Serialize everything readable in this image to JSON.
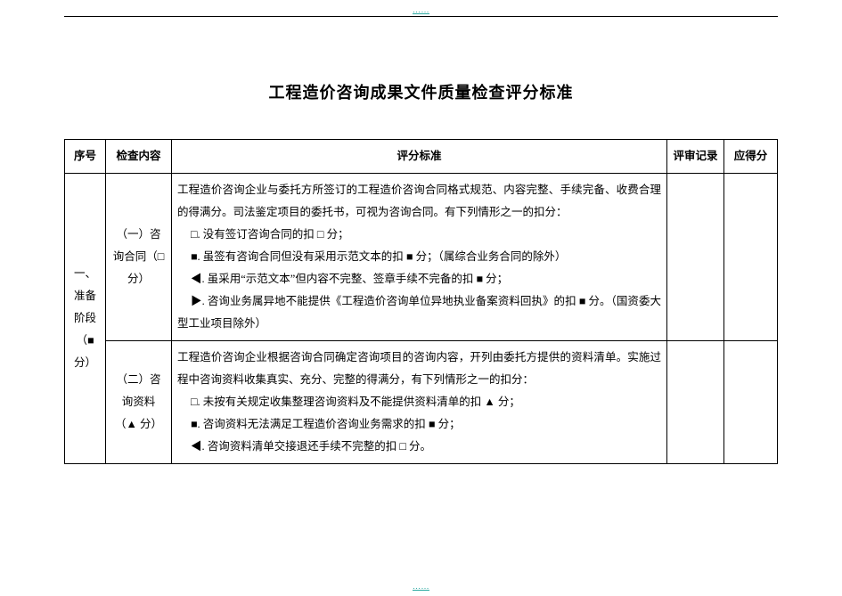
{
  "meta": {
    "top_link_text": "……",
    "bottom_link_text": "……"
  },
  "title": "工程造价咨询成果文件质量检查评分标准",
  "headers": {
    "seq": "序号",
    "item": "检查内容",
    "criteria": "评分标准",
    "record": "评审记录",
    "score": "应得分"
  },
  "section": {
    "seq": "一、准备阶段（■ 分）",
    "rows": [
      {
        "item": "（一）咨询合同（□ 分）",
        "criteria_lines": [
          "工程造价咨询企业与委托方所签订的工程造价咨询合同格式规范、内容完整、手续完备、收费合理的得满分。司法鉴定项目的委托书，可视为咨询合同。有下列情形之一的扣分：",
          "□. 没有签订咨询合同的扣 □ 分；",
          "■. 虽签有咨询合同但没有采用示范文本的扣 ■ 分；（属综合业务合同的除外）",
          "◀. 虽采用“示范文本”但内容不完整、签章手续不完备的扣 ■ 分；",
          "▶. 咨询业务属异地不能提供《工程造价咨询单位异地执业备案资料回执》的扣 ■ 分。（国资委大型工业项目除外）"
        ],
        "record": "",
        "score": ""
      },
      {
        "item": "（二）咨询资料（▲ 分）",
        "criteria_lines": [
          "工程造价咨询企业根据咨询合同确定咨询项目的咨询内容，开列由委托方提供的资料清单。实施过程中咨询资料收集真实、充分、完整的得满分，有下列情形之一的扣分：",
          "□. 未按有关规定收集整理咨询资料及不能提供资料清单的扣 ▲ 分；",
          "■. 咨询资料无法满足工程造价咨询业务需求的扣 ■ 分；",
          "◀. 咨询资料清单交接退还手续不完整的扣 □ 分。"
        ],
        "record": "",
        "score": ""
      }
    ]
  }
}
